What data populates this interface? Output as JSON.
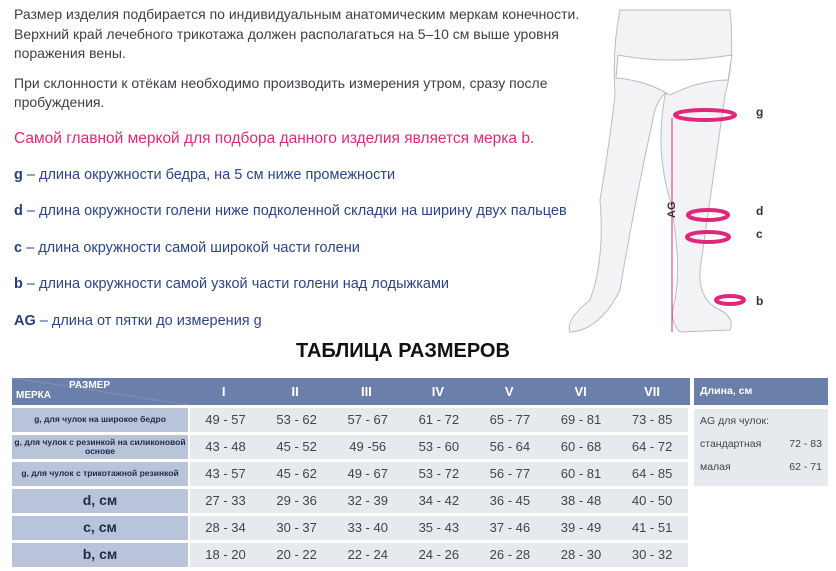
{
  "intro": [
    "Размер изделия подбирается по индивидуальным анатомическим меркам конечности. Верхний край лечебного трикотажа должен располагаться на 5–10 см выше уровня поражения вены.",
    "При склонности к отёкам необходимо производить измерения утром, сразу после пробуждения."
  ],
  "key_note": "Самой главной меркой для подбора данного изделия является мерка b.",
  "definitions": [
    {
      "letter": "g",
      "text": " – длина окружности бедра, на 5 см ниже промежности"
    },
    {
      "letter": "d",
      "text": " – длина окружности голени ниже подколенной складки на ширину двух пальцев"
    },
    {
      "letter": "c",
      "text": " – длина окружности самой широкой части голени"
    },
    {
      "letter": "b",
      "text": " – длина окружности самой узкой части голени над лодыжками"
    },
    {
      "letter": "AG",
      "text": " – длина от пятки до измерения g"
    }
  ],
  "figure": {
    "labels": {
      "g": "g",
      "d": "d",
      "c": "c",
      "b": "b",
      "ag": "AG"
    },
    "accent": "#e0287a"
  },
  "table_title": "ТАБЛИЦА РАЗМЕРОВ",
  "table": {
    "corner_size": "РАЗМЕР",
    "corner_measure": "МЕРКА",
    "sizes": [
      "I",
      "II",
      "III",
      "IV",
      "V",
      "VI",
      "VII"
    ],
    "rows": [
      {
        "label": "g, для чулок на широкое бедро",
        "big": false,
        "values": [
          "49 - 57",
          "53 - 62",
          "57 - 67",
          "61 - 72",
          "65 - 77",
          "69 - 81",
          "73 - 85"
        ]
      },
      {
        "label": "g, для чулок с  резинкой на силиконовой основе",
        "big": false,
        "values": [
          "43 - 48",
          "45 - 52",
          "49 -56",
          "53 - 60",
          "56 - 64",
          "60 - 68",
          "64 - 72"
        ]
      },
      {
        "label": "g, для чулок с трикотажной резинкой",
        "big": false,
        "values": [
          "43 - 57",
          "45 - 62",
          "49 - 67",
          "53 - 72",
          "56 - 77",
          "60 - 81",
          "64 - 85"
        ]
      },
      {
        "label": "d, см",
        "big": true,
        "values": [
          "27 - 33",
          "29 - 36",
          "32 - 39",
          "34 - 42",
          "36 - 45",
          "38 - 48",
          "40 - 50"
        ]
      },
      {
        "label": "c, см",
        "big": true,
        "values": [
          "28 - 34",
          "30 - 37",
          "33 - 40",
          "35 - 43",
          "37 - 46",
          "39 - 49",
          "41 - 51"
        ]
      },
      {
        "label": "b, см",
        "big": true,
        "values": [
          "18 - 20",
          "20 - 22",
          "22 - 24",
          "24 - 26",
          "26 - 28",
          "28 - 30",
          "30 - 32"
        ]
      }
    ]
  },
  "length_panel": {
    "title": "Длина, см",
    "subtitle": "AG для чулок:",
    "items": [
      {
        "name": "стандартная",
        "value": "72 - 83"
      },
      {
        "name": "малая",
        "value": "62 - 71"
      }
    ]
  }
}
